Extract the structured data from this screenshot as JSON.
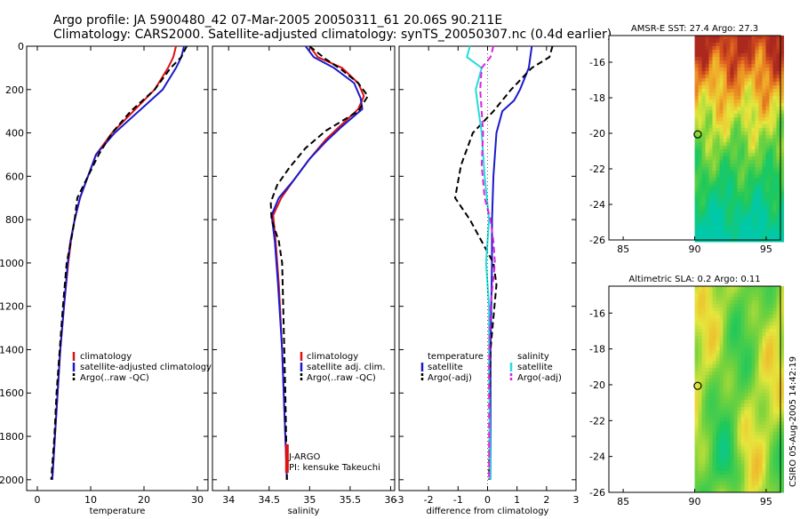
{
  "title_line1": "Argo profile: JA 5900480_42 07-Mar-2005 20050311_61 20.06S 90.211E",
  "title_line2": "Climatology: CARS2000. Satellite-adjusted climatology: synTS_20050307.nc (0.4d earlier)",
  "side_label": "CSIRO 05-Aug-2005 14:42:19",
  "colors": {
    "red": "#dd1111",
    "blue": "#1a1acc",
    "black": "#000000",
    "cyan": "#22dddd",
    "magenta": "#e020e0"
  },
  "chart_data": [
    {
      "type": "line",
      "id": "temperature",
      "xlabel": "temperature",
      "ylabel": "",
      "xlim": [
        -2,
        32
      ],
      "ylim": [
        2050,
        0
      ],
      "xticks": [
        0,
        10,
        20,
        30
      ],
      "yticks": [
        0,
        200,
        400,
        600,
        800,
        1000,
        1200,
        1400,
        1600,
        1800,
        2000
      ],
      "legend": {
        "position": "bottom-right",
        "entries": [
          "climatology",
          "satellite-adjusted climatology",
          "Argo(..raw -QC)"
        ]
      },
      "series": [
        {
          "name": "climatology",
          "color": "red",
          "dash": "solid",
          "points": [
            [
              26,
              0
            ],
            [
              25.5,
              50
            ],
            [
              24.5,
              100
            ],
            [
              22,
              200
            ],
            [
              18,
              300
            ],
            [
              14,
              400
            ],
            [
              11,
              500
            ],
            [
              9.5,
              600
            ],
            [
              8,
              700
            ],
            [
              7,
              800
            ],
            [
              6.3,
              900
            ],
            [
              5.8,
              1000
            ],
            [
              5,
              1200
            ],
            [
              4.3,
              1400
            ],
            [
              3.8,
              1600
            ],
            [
              3.3,
              1800
            ],
            [
              2.8,
              2000
            ]
          ]
        },
        {
          "name": "satellite-adjusted climatology",
          "color": "blue",
          "dash": "solid",
          "points": [
            [
              27.5,
              0
            ],
            [
              27,
              50
            ],
            [
              26,
              100
            ],
            [
              23.5,
              200
            ],
            [
              19,
              300
            ],
            [
              14.5,
              400
            ],
            [
              11,
              500
            ],
            [
              9.5,
              600
            ],
            [
              8,
              700
            ],
            [
              7,
              800
            ],
            [
              6.2,
              900
            ],
            [
              5.7,
              1000
            ],
            [
              5,
              1200
            ],
            [
              4.3,
              1400
            ],
            [
              3.8,
              1600
            ],
            [
              3.3,
              1800
            ],
            [
              2.8,
              2000
            ]
          ]
        },
        {
          "name": "Argo(..raw -QC)",
          "color": "black",
          "dash": "dashed",
          "points": [
            [
              28,
              0
            ],
            [
              27,
              50
            ],
            [
              25,
              100
            ],
            [
              22,
              200
            ],
            [
              17.5,
              300
            ],
            [
              14,
              400
            ],
            [
              11.5,
              500
            ],
            [
              9.5,
              600
            ],
            [
              7.5,
              700
            ],
            [
              7,
              800
            ],
            [
              6.3,
              900
            ],
            [
              5.5,
              1000
            ],
            [
              4.8,
              1200
            ],
            [
              4.2,
              1400
            ],
            [
              3.6,
              1600
            ],
            [
              3.2,
              1800
            ],
            [
              2.6,
              2000
            ]
          ]
        }
      ]
    },
    {
      "type": "line",
      "id": "salinity",
      "xlabel": "salinity",
      "ylabel": "",
      "xlim": [
        33.8,
        36.05
      ],
      "ylim": [
        2050,
        0
      ],
      "xticks": [
        34,
        34.5,
        35,
        35.5,
        36
      ],
      "xticklabels": [
        "34",
        "34.5",
        "35",
        "35.5",
        "36"
      ],
      "legend": {
        "position": "bottom-right",
        "entries": [
          "climatology",
          "satellite adj. clim.",
          "Argo(..raw -QC)"
        ]
      },
      "annotations": [
        "J-ARGO",
        "PI: kensuke Takeuchi"
      ],
      "series": [
        {
          "name": "climatology",
          "color": "red",
          "dash": "solid",
          "points": [
            [
              35.0,
              0
            ],
            [
              35.1,
              50
            ],
            [
              35.4,
              100
            ],
            [
              35.6,
              170
            ],
            [
              35.67,
              230
            ],
            [
              35.6,
              290
            ],
            [
              35.4,
              360
            ],
            [
              35.2,
              430
            ],
            [
              35.0,
              520
            ],
            [
              34.8,
              620
            ],
            [
              34.65,
              700
            ],
            [
              34.55,
              780
            ],
            [
              34.58,
              900
            ],
            [
              34.62,
              1100
            ],
            [
              34.66,
              1400
            ],
            [
              34.69,
              1700
            ],
            [
              34.72,
              2000
            ]
          ]
        },
        {
          "name": "satellite adj. clim.",
          "color": "blue",
          "dash": "solid",
          "points": [
            [
              34.95,
              0
            ],
            [
              35.05,
              50
            ],
            [
              35.3,
              100
            ],
            [
              35.55,
              170
            ],
            [
              35.63,
              240
            ],
            [
              35.65,
              290
            ],
            [
              35.4,
              370
            ],
            [
              35.2,
              440
            ],
            [
              35.0,
              520
            ],
            [
              34.8,
              620
            ],
            [
              34.62,
              700
            ],
            [
              34.53,
              780
            ],
            [
              34.57,
              900
            ],
            [
              34.61,
              1100
            ],
            [
              34.66,
              1400
            ],
            [
              34.69,
              1700
            ],
            [
              34.72,
              2000
            ]
          ]
        },
        {
          "name": "Argo(..raw -QC)",
          "color": "black",
          "dash": "dashed",
          "points": [
            [
              35.0,
              0
            ],
            [
              35.2,
              60
            ],
            [
              35.4,
              110
            ],
            [
              35.6,
              170
            ],
            [
              35.72,
              230
            ],
            [
              35.6,
              300
            ],
            [
              35.2,
              390
            ],
            [
              34.95,
              470
            ],
            [
              34.75,
              560
            ],
            [
              34.6,
              640
            ],
            [
              34.52,
              720
            ],
            [
              34.53,
              800
            ],
            [
              34.62,
              900
            ],
            [
              34.66,
              1000
            ],
            [
              34.68,
              1300
            ],
            [
              34.7,
              1600
            ],
            [
              34.72,
              2000
            ]
          ]
        }
      ]
    },
    {
      "type": "line",
      "id": "difference",
      "xlabel": "difference from climatology",
      "ylabel": "",
      "xlim": [
        -3,
        3
      ],
      "ylim": [
        2050,
        0
      ],
      "xticks": [
        -3,
        -2,
        -1,
        0,
        1,
        2,
        3
      ],
      "legend": {
        "position": "bottom",
        "entries": [
          "temperature",
          "satellite",
          "Argo(-adj)",
          "salinity",
          "satellite",
          "Argo(-adj)"
        ]
      },
      "series": [
        {
          "name": "satellite",
          "group": "temperature",
          "color": "blue",
          "dash": "solid",
          "points": [
            [
              1.5,
              0
            ],
            [
              1.4,
              100
            ],
            [
              1.1,
              200
            ],
            [
              0.9,
              250
            ],
            [
              0.5,
              300
            ],
            [
              0.3,
              400
            ],
            [
              0.2,
              600
            ],
            [
              0.15,
              800
            ],
            [
              0.15,
              1000
            ],
            [
              0.1,
              1400
            ],
            [
              0.1,
              2000
            ]
          ]
        },
        {
          "name": "Argo(-adj)",
          "group": "temperature",
          "color": "black",
          "dash": "dashed",
          "points": [
            [
              2.2,
              0
            ],
            [
              2.1,
              50
            ],
            [
              1.5,
              100
            ],
            [
              0.8,
              200
            ],
            [
              0.2,
              300
            ],
            [
              -0.5,
              400
            ],
            [
              -0.9,
              550
            ],
            [
              -1.1,
              700
            ],
            [
              -0.6,
              800
            ],
            [
              0.2,
              1000
            ],
            [
              0.3,
              1100
            ],
            [
              0.1,
              1400
            ],
            [
              0.05,
              2000
            ]
          ]
        },
        {
          "name": "satellite",
          "group": "salinity",
          "color": "cyan",
          "dash": "solid",
          "points": [
            [
              -0.6,
              0
            ],
            [
              -0.7,
              50
            ],
            [
              -0.2,
              100
            ],
            [
              -0.4,
              200
            ],
            [
              -0.3,
              300
            ],
            [
              -0.2,
              400
            ],
            [
              -0.1,
              600
            ],
            [
              0.05,
              800
            ],
            [
              -0.05,
              1000
            ],
            [
              0.05,
              1200
            ],
            [
              0.05,
              1500
            ],
            [
              0.1,
              2000
            ]
          ]
        },
        {
          "name": "Argo(-adj)",
          "group": "salinity",
          "color": "magenta",
          "dash": "dashed",
          "points": [
            [
              0.2,
              0
            ],
            [
              0.1,
              50
            ],
            [
              -0.2,
              100
            ],
            [
              -0.25,
              200
            ],
            [
              -0.2,
              300
            ],
            [
              -0.15,
              400
            ],
            [
              -0.2,
              550
            ],
            [
              -0.1,
              700
            ],
            [
              0.1,
              800
            ],
            [
              0.2,
              900
            ],
            [
              0.25,
              1000
            ],
            [
              0.1,
              1200
            ],
            [
              0.05,
              1500
            ],
            [
              0.05,
              2000
            ]
          ]
        }
      ]
    },
    {
      "type": "heatmap",
      "id": "sst_map",
      "title": "AMSR-E SST: 27.4 Argo: 27.3",
      "xlim": [
        84,
        96
      ],
      "ylim": [
        -26,
        -14.5
      ],
      "xticks": [
        85,
        90,
        95
      ],
      "yticks": [
        -16,
        -18,
        -20,
        -22,
        -24,
        -26
      ],
      "argo_position": [
        90.211,
        -20.06
      ]
    },
    {
      "type": "heatmap",
      "id": "sla_map",
      "title": "Altimetric SLA: 0.2 Argo: 0.11",
      "xlim": [
        84,
        96
      ],
      "ylim": [
        -26,
        -14.5
      ],
      "xticks": [
        85,
        90,
        95
      ],
      "yticks": [
        -16,
        -18,
        -20,
        -22,
        -24,
        -26
      ],
      "argo_position": [
        90.211,
        -20.06
      ]
    }
  ]
}
